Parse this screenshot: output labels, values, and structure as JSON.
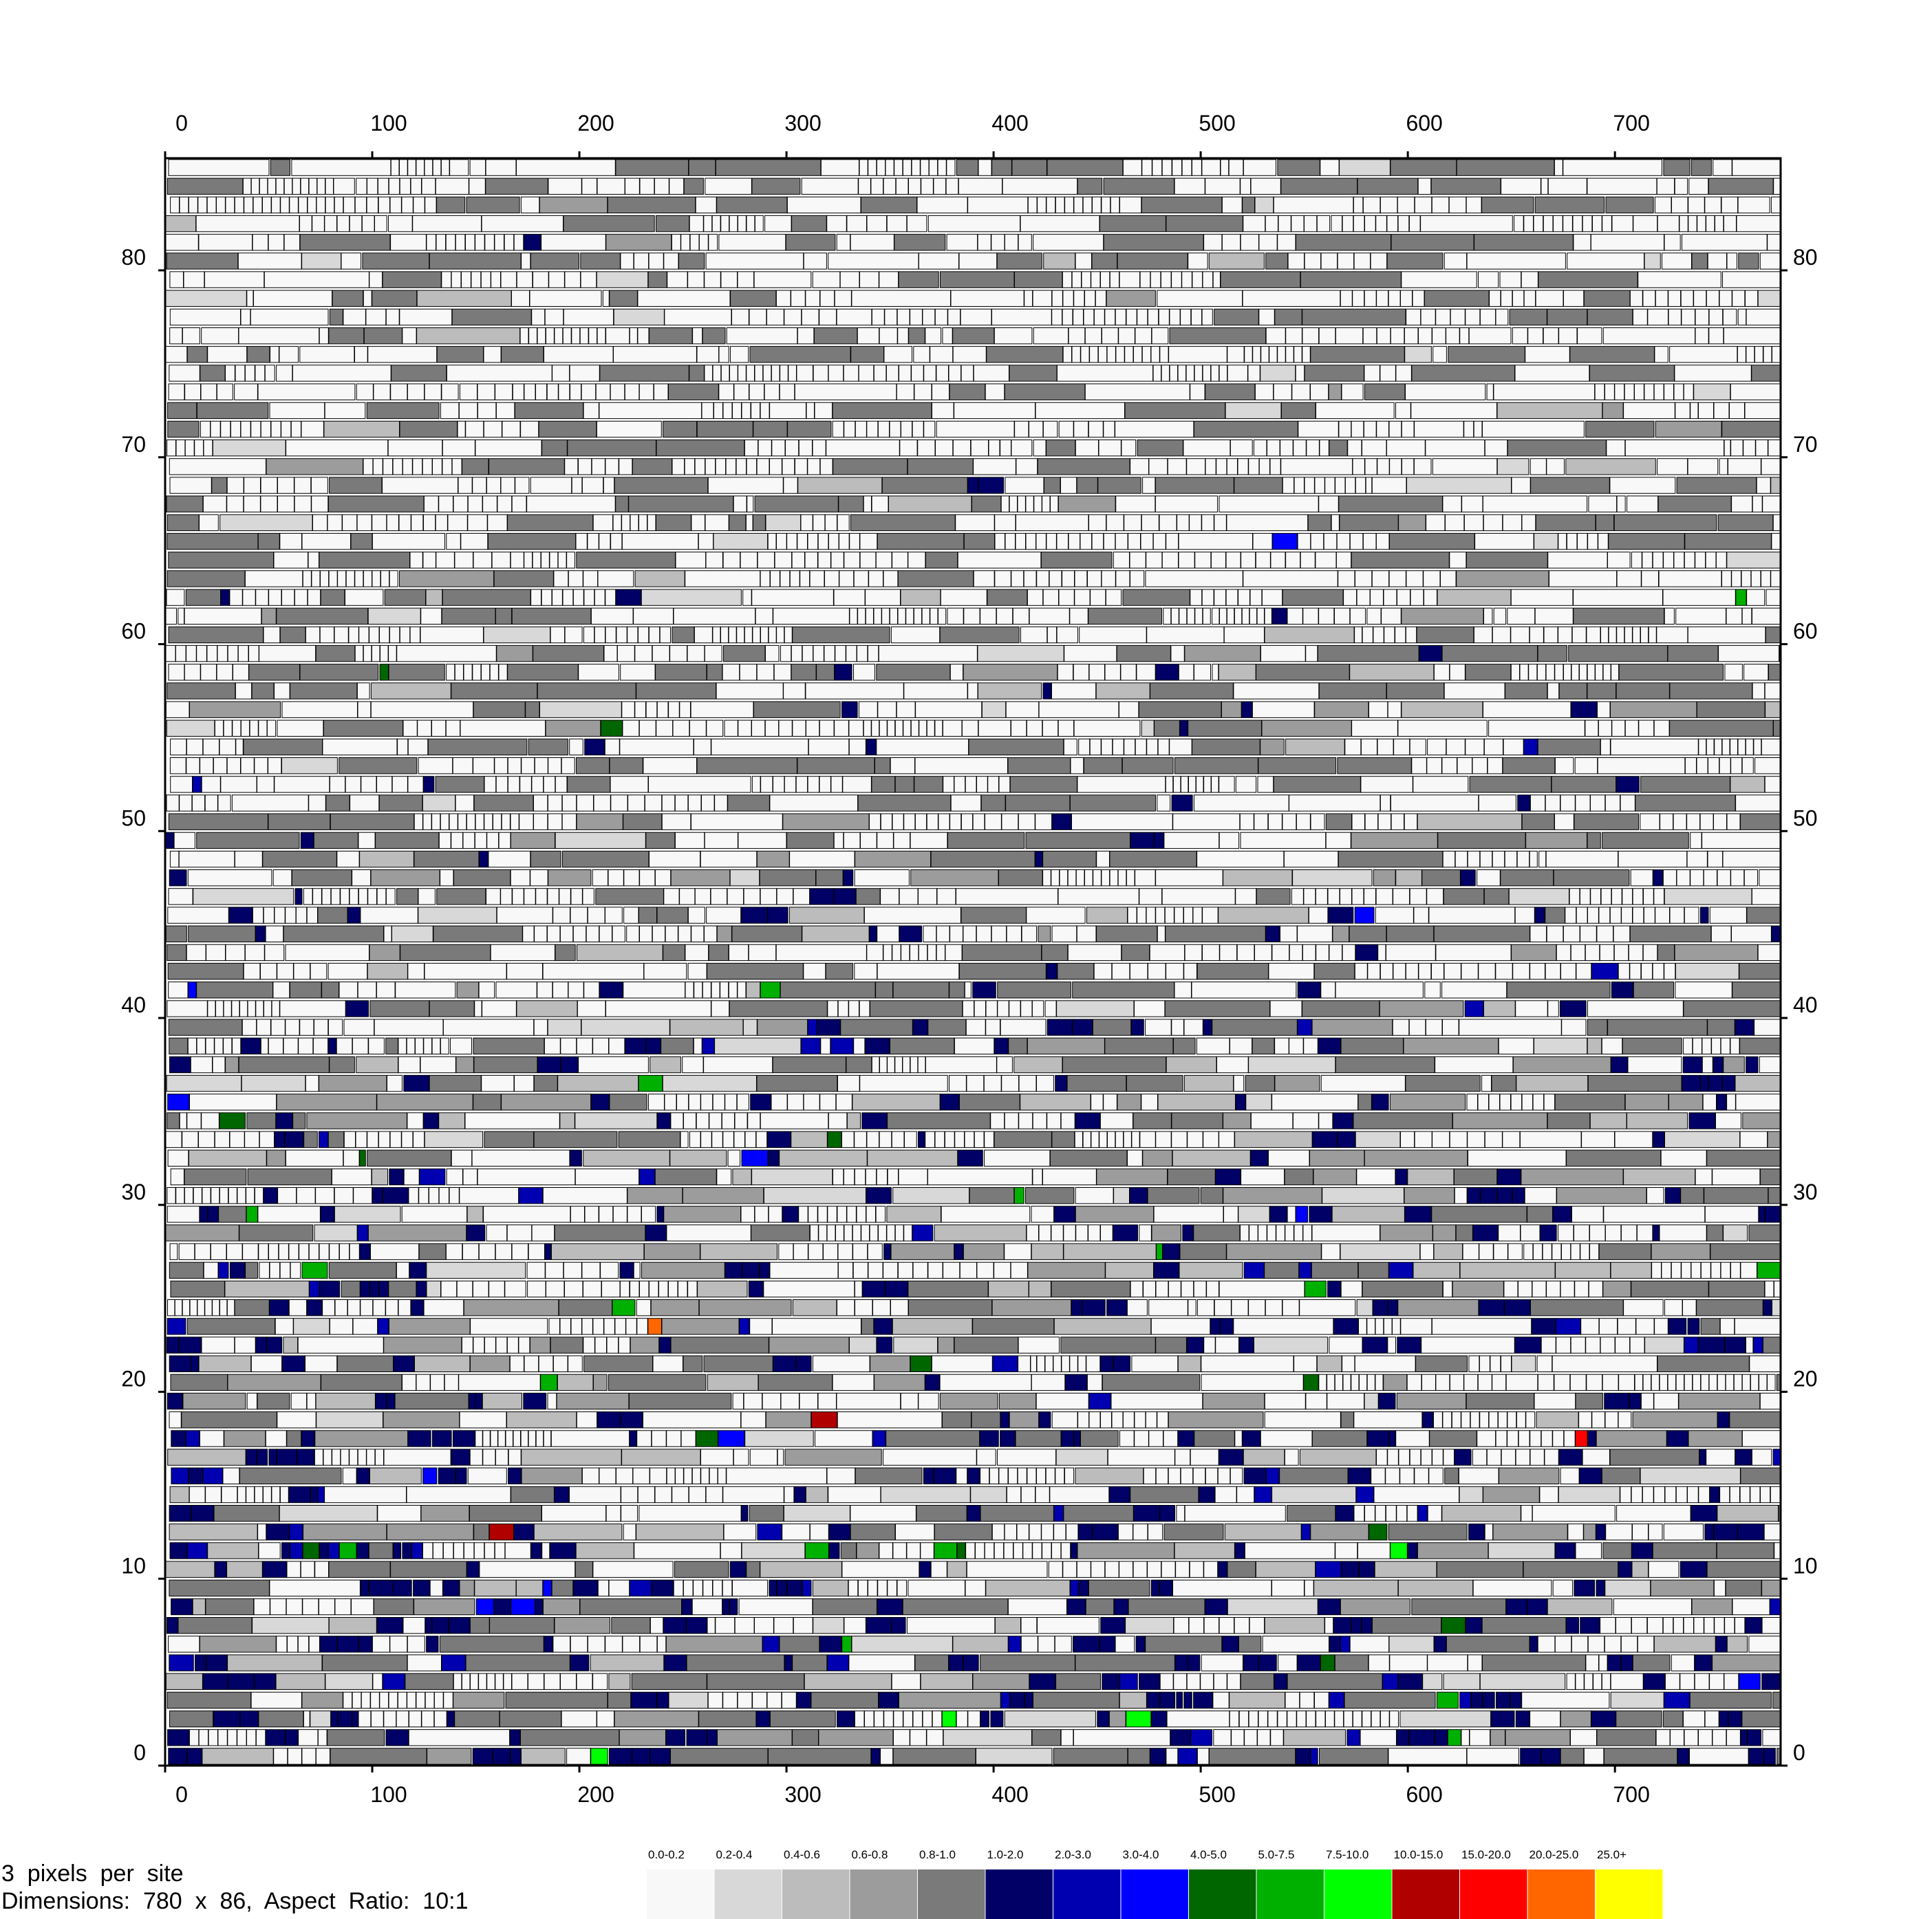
{
  "chart_data": {
    "type": "heatmap",
    "x_ticks": [
      0,
      100,
      200,
      300,
      400,
      500,
      600,
      700
    ],
    "y_ticks": [
      0,
      10,
      20,
      30,
      40,
      50,
      60,
      70,
      80
    ],
    "xlim": [
      0,
      780
    ],
    "ylim": [
      0,
      86
    ],
    "grid": false,
    "tick_labels_on": [
      "top",
      "bottom",
      "left",
      "right"
    ],
    "legend_placement": "bottom-right",
    "legend": [
      {
        "label": "0.0-0.2",
        "color": "#f8f8f8"
      },
      {
        "label": "0.2-0.4",
        "color": "#d8d8d8"
      },
      {
        "label": "0.4-0.6",
        "color": "#bcbcbc"
      },
      {
        "label": "0.6-0.8",
        "color": "#9c9c9c"
      },
      {
        "label": "0.8-1.0",
        "color": "#7a7a7a"
      },
      {
        "label": "1.0-2.0",
        "color": "#000066"
      },
      {
        "label": "2.0-3.0",
        "color": "#0000b0"
      },
      {
        "label": "3.0-4.0",
        "color": "#0000ff"
      },
      {
        "label": "4.0-5.0",
        "color": "#006600"
      },
      {
        "label": "5.0-7.5",
        "color": "#00b000"
      },
      {
        "label": "7.5-10.0",
        "color": "#00ff00"
      },
      {
        "label": "10.0-15.0",
        "color": "#b00000"
      },
      {
        "label": "15.0-20.0",
        "color": "#ff0000"
      },
      {
        "label": "20.0-25.0",
        "color": "#ff6600"
      },
      {
        "label": "25.0+",
        "color": "#ffff00"
      }
    ],
    "row_profile": [
      {
        "row_start": 0,
        "row_end": 10,
        "mix": [
          0.28,
          0.04,
          0.05,
          0.06,
          0.17,
          0.34,
          0.05,
          0.005,
          0.004,
          0.004,
          0.002,
          0,
          0,
          0,
          0
        ]
      },
      {
        "row_start": 10,
        "row_end": 20,
        "mix": [
          0.3,
          0.04,
          0.07,
          0.07,
          0.16,
          0.29,
          0.06,
          0.005,
          0.004,
          0.006,
          0.004,
          0.001,
          0.001,
          0,
          0
        ]
      },
      {
        "row_start": 20,
        "row_end": 30,
        "mix": [
          0.33,
          0.05,
          0.08,
          0.08,
          0.16,
          0.24,
          0.04,
          0.007,
          0.006,
          0.008,
          0.005,
          0,
          0,
          0.001,
          0
        ]
      },
      {
        "row_start": 30,
        "row_end": 40,
        "mix": [
          0.38,
          0.04,
          0.07,
          0.08,
          0.21,
          0.17,
          0.03,
          0.006,
          0.005,
          0.006,
          0.004,
          0.001,
          0,
          0,
          0
        ]
      },
      {
        "row_start": 40,
        "row_end": 50,
        "mix": [
          0.5,
          0.03,
          0.05,
          0.06,
          0.25,
          0.09,
          0.01,
          0.004,
          0.003,
          0.003,
          0.002,
          0.001,
          0,
          0,
          0
        ]
      },
      {
        "row_start": 50,
        "row_end": 60,
        "mix": [
          0.56,
          0.03,
          0.04,
          0.04,
          0.27,
          0.05,
          0.006,
          0.003,
          0.002,
          0.002,
          0.001,
          0,
          0,
          0,
          0
        ]
      },
      {
        "row_start": 60,
        "row_end": 70,
        "mix": [
          0.66,
          0.03,
          0.03,
          0.02,
          0.25,
          0.01,
          0.002,
          0.001,
          0.001,
          0.001,
          0,
          0,
          0,
          0,
          0
        ]
      },
      {
        "row_start": 70,
        "row_end": 86,
        "mix": [
          0.68,
          0.03,
          0.02,
          0.01,
          0.26,
          0.001,
          0,
          0,
          0,
          0,
          0,
          0,
          0,
          0,
          0
        ]
      }
    ]
  },
  "info": {
    "scale_line": "3  pixels  per  site",
    "dimensions_line": "Dimensions:  780  x  86,  Aspect  Ratio:  10:1"
  }
}
